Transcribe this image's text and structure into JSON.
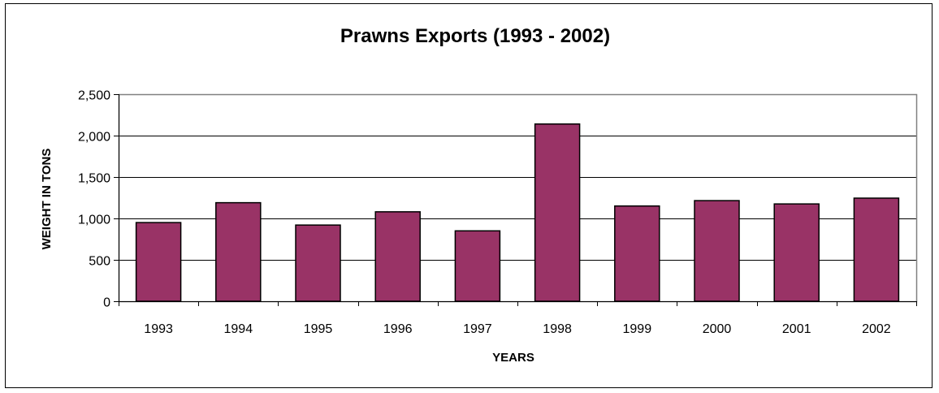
{
  "chart_data": {
    "type": "bar",
    "title": "Prawns Exports (1993 - 2002)",
    "xlabel": "YEARS",
    "ylabel": "WEIGHT IN TONS",
    "categories": [
      "1993",
      "1994",
      "1995",
      "1996",
      "1997",
      "1998",
      "1999",
      "2000",
      "2001",
      "2002"
    ],
    "series": [
      {
        "values": [
          950,
          1190,
          920,
          1080,
          850,
          2140,
          1150,
          1215,
          1175,
          1245
        ]
      }
    ],
    "ylim": [
      0,
      2500
    ],
    "yticks": [
      0,
      500,
      1000,
      1500,
      2000,
      2500
    ],
    "ytick_labels": [
      "0",
      "500",
      "1,000",
      "1,500",
      "2,000",
      "2,500"
    ],
    "grid": true,
    "legend": "none",
    "colors": {
      "bar": "#993366",
      "plot_border": "#808080",
      "grid": "#000000"
    }
  }
}
